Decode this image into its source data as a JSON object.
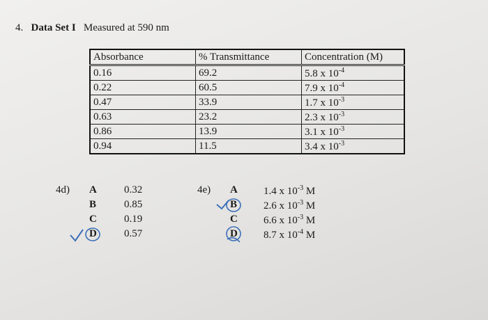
{
  "heading": {
    "number": "4.",
    "label": "Data Set I",
    "text": "Measured at 590 nm"
  },
  "table": {
    "headers": [
      "Absorbance",
      "% Transmittance",
      "Concentration (M)"
    ],
    "rows": [
      [
        "0.16",
        "69.2",
        {
          "base": "5.8 x 10",
          "exp": "-4"
        }
      ],
      [
        "0.22",
        "60.5",
        {
          "base": "7.9 x 10",
          "exp": "-4"
        }
      ],
      [
        "0.47",
        "33.9",
        {
          "base": "1.7 x 10",
          "exp": "-3"
        }
      ],
      [
        "0.63",
        "23.2",
        {
          "base": "2.3 x 10",
          "exp": "-3"
        }
      ],
      [
        "0.86",
        "13.9",
        {
          "base": "3.1 x 10",
          "exp": "-3"
        }
      ],
      [
        "0.94",
        "11.5",
        {
          "base": "3.4 x 10",
          "exp": "-3"
        }
      ]
    ]
  },
  "question_4d": {
    "label": "4d)",
    "options": [
      {
        "letter": "A",
        "value": "0.32"
      },
      {
        "letter": "B",
        "value": "0.85"
      },
      {
        "letter": "C",
        "value": "0.19"
      },
      {
        "letter": "D",
        "value": "0.57"
      }
    ]
  },
  "question_4e": {
    "label": "4e)",
    "options": [
      {
        "letter": "A",
        "base": "1.4 x 10",
        "exp": "-3",
        "unit": "M"
      },
      {
        "letter": "B",
        "base": "2.6 x 10",
        "exp": "-3",
        "unit": "M"
      },
      {
        "letter": "C",
        "base": "6.6 x 10",
        "exp": "-3",
        "unit": "M"
      },
      {
        "letter": "D",
        "base": "8.7 x 10",
        "exp": "-4",
        "unit": "M"
      }
    ]
  }
}
